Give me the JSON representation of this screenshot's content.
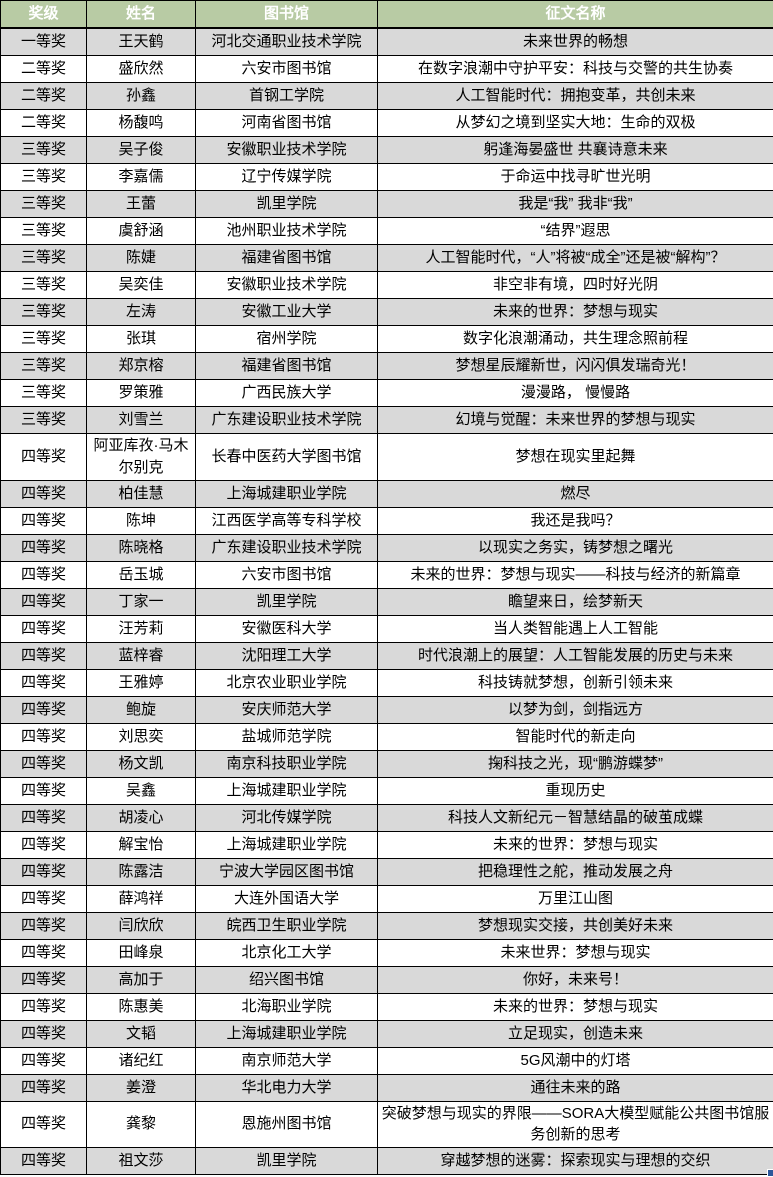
{
  "colors": {
    "header_bg": "#B8CBA4",
    "header_text": "#FFFFFF",
    "stripe": "#D9D9D9",
    "row": "#FFFFFF",
    "border": "#000000",
    "fill_handle": "#2B579A"
  },
  "table": {
    "columns": [
      "奖级",
      "姓名",
      "图书馆",
      "征文名称"
    ],
    "rows": [
      {
        "award": "一等奖",
        "name": "王天鹤",
        "library": "河北交通职业技术学院",
        "title": "未来世界的畅想"
      },
      {
        "award": "二等奖",
        "name": "盛欣然",
        "library": "六安市图书馆",
        "title": "在数字浪潮中守护平安：科技与交警的共生协奏"
      },
      {
        "award": "二等奖",
        "name": "孙鑫",
        "library": "首钢工学院",
        "title": "人工智能时代：拥抱变革，共创未来"
      },
      {
        "award": "二等奖",
        "name": "杨馥鸣",
        "library": "河南省图书馆",
        "title": "从梦幻之境到坚实大地：生命的双极"
      },
      {
        "award": "三等奖",
        "name": "吴子俊",
        "library": "安徽职业技术学院",
        "title": "躬逢海晏盛世 共襄诗意未来"
      },
      {
        "award": "三等奖",
        "name": "李嘉儒",
        "library": "辽宁传媒学院",
        "title": "于命运中找寻旷世光明"
      },
      {
        "award": "三等奖",
        "name": "王蕾",
        "library": "凯里学院",
        "title": "我是“我” 我非“我”"
      },
      {
        "award": "三等奖",
        "name": "虞舒涵",
        "library": "池州职业技术学院",
        "title": "“结界”遐思"
      },
      {
        "award": "三等奖",
        "name": "陈婕",
        "library": "福建省图书馆",
        "title": "人工智能时代，“人”将被“成全”还是被“解构”？"
      },
      {
        "award": "三等奖",
        "name": "吴奕佳",
        "library": "安徽职业技术学院",
        "title": "非空非有境，四时好光阴"
      },
      {
        "award": "三等奖",
        "name": "左涛",
        "library": "安徽工业大学",
        "title": "未来的世界：梦想与现实"
      },
      {
        "award": "三等奖",
        "name": "张琪",
        "library": "宿州学院",
        "title": "数字化浪潮涌动，共生理念照前程"
      },
      {
        "award": "三等奖",
        "name": "郑京榕",
        "library": "福建省图书馆",
        "title": "梦想星辰耀新世，闪闪俱发瑞奇光！"
      },
      {
        "award": "三等奖",
        "name": "罗策雅",
        "library": "广西民族大学",
        "title": "漫漫路， 慢慢路"
      },
      {
        "award": "三等奖",
        "name": "刘雪兰",
        "library": "广东建设职业技术学院",
        "title": "幻境与觉醒：未来世界的梦想与现实"
      },
      {
        "award": "四等奖",
        "name": "阿亚库孜·马木尔别克",
        "library": "长春中医药大学图书馆",
        "title": "梦想在现实里起舞"
      },
      {
        "award": "四等奖",
        "name": "柏佳慧",
        "library": "上海城建职业学院",
        "title": "燃尽"
      },
      {
        "award": "四等奖",
        "name": "陈坤",
        "library": "江西医学高等专科学校",
        "title": "我还是我吗？"
      },
      {
        "award": "四等奖",
        "name": "陈晓格",
        "library": "广东建设职业技术学院",
        "title": "以现实之务实，铸梦想之曙光"
      },
      {
        "award": "四等奖",
        "name": "岳玉城",
        "library": "六安市图书馆",
        "title": "未来的世界：梦想与现实——科技与经济的新篇章"
      },
      {
        "award": "四等奖",
        "name": "丁家一",
        "library": "凯里学院",
        "title": "瞻望来日，绘梦新天"
      },
      {
        "award": "四等奖",
        "name": "汪芳莉",
        "library": "安徽医科大学",
        "title": "当人类智能遇上人工智能"
      },
      {
        "award": "四等奖",
        "name": "蓝梓睿",
        "library": "沈阳理工大学",
        "title": "时代浪潮上的展望：人工智能发展的历史与未来"
      },
      {
        "award": "四等奖",
        "name": "王雅婷",
        "library": "北京农业职业学院",
        "title": "科技铸就梦想，创新引领未来"
      },
      {
        "award": "四等奖",
        "name": "鲍旋",
        "library": "安庆师范大学",
        "title": "以梦为剑，剑指远方"
      },
      {
        "award": "四等奖",
        "name": "刘思奕",
        "library": "盐城师范学院",
        "title": "智能时代的新走向"
      },
      {
        "award": "四等奖",
        "name": "杨文凯",
        "library": "南京科技职业学院",
        "title": "掬科技之光，现“鹏游蝶梦”"
      },
      {
        "award": "四等奖",
        "name": "吴鑫",
        "library": "上海城建职业学院",
        "title": "重现历史"
      },
      {
        "award": "四等奖",
        "name": "胡凌心",
        "library": "河北传媒学院",
        "title": "科技人文新纪元－智慧结晶的破茧成蝶"
      },
      {
        "award": "四等奖",
        "name": "解宝怡",
        "library": "上海城建职业学院",
        "title": "未来的世界：梦想与现实"
      },
      {
        "award": "四等奖",
        "name": "陈露洁",
        "library": "宁波大学园区图书馆",
        "title": "把稳理性之舵，推动发展之舟"
      },
      {
        "award": "四等奖",
        "name": "薛鸿祥",
        "library": "大连外国语大学",
        "title": "万里江山图"
      },
      {
        "award": "四等奖",
        "name": "闫欣欣",
        "library": "皖西卫生职业学院",
        "title": "梦想现实交接，共创美好未来"
      },
      {
        "award": "四等奖",
        "name": "田峰泉",
        "library": "北京化工大学",
        "title": "未来世界：梦想与现实"
      },
      {
        "award": "四等奖",
        "name": "高加于",
        "library": "绍兴图书馆",
        "title": "你好，未来号！"
      },
      {
        "award": "四等奖",
        "name": "陈惠美",
        "library": "北海职业学院",
        "title": "未来的世界：梦想与现实"
      },
      {
        "award": "四等奖",
        "name": "文韬",
        "library": "上海城建职业学院",
        "title": "立足现实，创造未来"
      },
      {
        "award": "四等奖",
        "name": "诸纪红",
        "library": "南京师范大学",
        "title": "5G风潮中的灯塔"
      },
      {
        "award": "四等奖",
        "name": "姜澄",
        "library": "华北电力大学",
        "title": "通往未来的路"
      },
      {
        "award": "四等奖",
        "name": "龚黎",
        "library": "恩施州图书馆",
        "title": "突破梦想与现实的界限——SORA大模型赋能公共图书馆服务创新的思考"
      },
      {
        "award": "四等奖",
        "name": "祖文莎",
        "library": "凯里学院",
        "title": "穿越梦想的迷雾：探索现实与理想的交织"
      }
    ]
  }
}
